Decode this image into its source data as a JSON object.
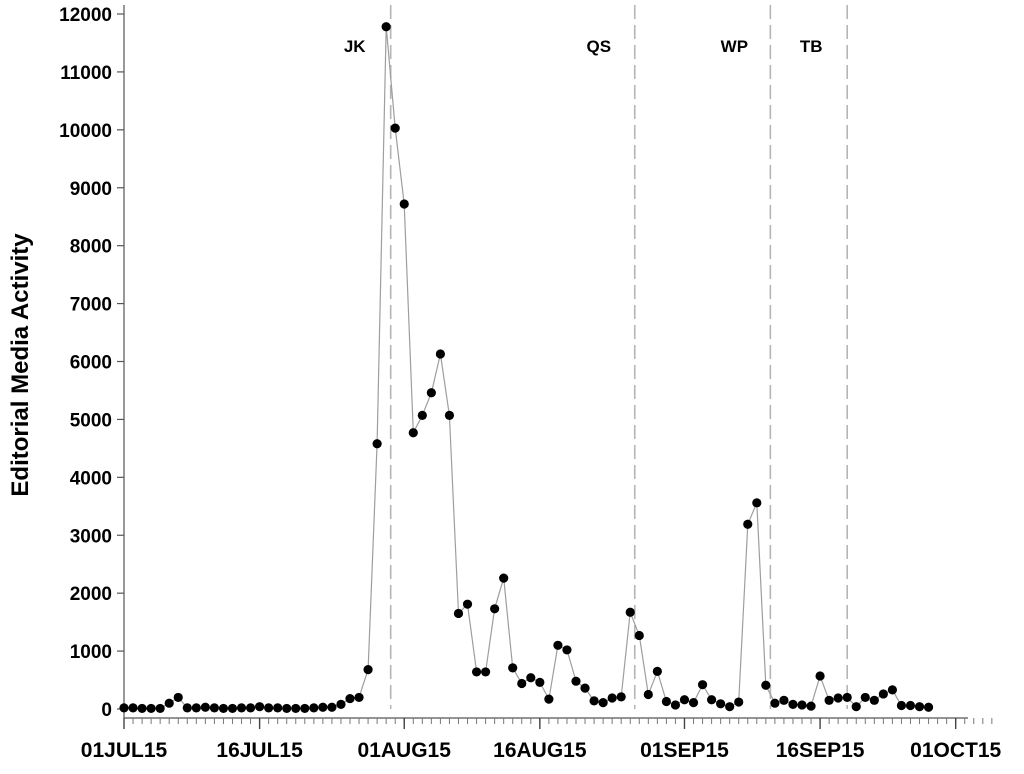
{
  "chart_data": {
    "type": "line",
    "ylabel": "Editorial Media Activity",
    "xlabel": "",
    "ylim": [
      0,
      12000
    ],
    "y_ticks": [
      0,
      1000,
      2000,
      3000,
      4000,
      5000,
      6000,
      7000,
      8000,
      9000,
      10000,
      11000,
      12000
    ],
    "x_ticks": [
      {
        "label": "01JUL15",
        "day": 0
      },
      {
        "label": "16JUL15",
        "day": 15
      },
      {
        "label": "01AUG15",
        "day": 31
      },
      {
        "label": "16AUG15",
        "day": 46
      },
      {
        "label": "01SEP15",
        "day": 62
      },
      {
        "label": "16SEP15",
        "day": 77
      },
      {
        "label": "01OCT15",
        "day": 92
      }
    ],
    "xlim_days": [
      0,
      96
    ],
    "marker": "filled-circle",
    "line_color": "#9e9e9e",
    "marker_color": "#000000",
    "reference_lines": [
      {
        "label": "JK",
        "day": 29.5
      },
      {
        "label": "QS",
        "day": 56.5
      },
      {
        "label": "WP",
        "day": 71.5
      },
      {
        "label": "TB",
        "day": 80
      }
    ],
    "series": [
      {
        "values": [
          {
            "date": "01JUL15",
            "y": 20
          },
          {
            "date": "02JUL15",
            "y": 20
          },
          {
            "date": "03JUL15",
            "y": 10
          },
          {
            "date": "04JUL15",
            "y": 10
          },
          {
            "date": "05JUL15",
            "y": 10
          },
          {
            "date": "06JUL15",
            "y": 100
          },
          {
            "date": "07JUL15",
            "y": 200
          },
          {
            "date": "08JUL15",
            "y": 20
          },
          {
            "date": "09JUL15",
            "y": 20
          },
          {
            "date": "10JUL15",
            "y": 30
          },
          {
            "date": "11JUL15",
            "y": 20
          },
          {
            "date": "12JUL15",
            "y": 10
          },
          {
            "date": "13JUL15",
            "y": 10
          },
          {
            "date": "14JUL15",
            "y": 20
          },
          {
            "date": "15JUL15",
            "y": 20
          },
          {
            "date": "16JUL15",
            "y": 40
          },
          {
            "date": "17JUL15",
            "y": 20
          },
          {
            "date": "18JUL15",
            "y": 20
          },
          {
            "date": "19JUL15",
            "y": 10
          },
          {
            "date": "20JUL15",
            "y": 10
          },
          {
            "date": "21JUL15",
            "y": 10
          },
          {
            "date": "22JUL15",
            "y": 20
          },
          {
            "date": "23JUL15",
            "y": 30
          },
          {
            "date": "24JUL15",
            "y": 30
          },
          {
            "date": "25JUL15",
            "y": 80
          },
          {
            "date": "26JUL15",
            "y": 180
          },
          {
            "date": "27JUL15",
            "y": 200
          },
          {
            "date": "28JUL15",
            "y": 680
          },
          {
            "date": "29JUL15",
            "y": 4580
          },
          {
            "date": "30JUL15",
            "y": 11780
          },
          {
            "date": "31JUL15",
            "y": 10030
          },
          {
            "date": "01AUG15",
            "y": 8720
          },
          {
            "date": "02AUG15",
            "y": 4770
          },
          {
            "date": "03AUG15",
            "y": 5070
          },
          {
            "date": "04AUG15",
            "y": 5460
          },
          {
            "date": "05AUG15",
            "y": 6130
          },
          {
            "date": "06AUG15",
            "y": 5070
          },
          {
            "date": "07AUG15",
            "y": 1650
          },
          {
            "date": "08AUG15",
            "y": 1810
          },
          {
            "date": "09AUG15",
            "y": 640
          },
          {
            "date": "10AUG15",
            "y": 640
          },
          {
            "date": "11AUG15",
            "y": 1730
          },
          {
            "date": "12AUG15",
            "y": 2260
          },
          {
            "date": "13AUG15",
            "y": 710
          },
          {
            "date": "14AUG15",
            "y": 440
          },
          {
            "date": "15AUG15",
            "y": 540
          },
          {
            "date": "16AUG15",
            "y": 460
          },
          {
            "date": "17AUG15",
            "y": 170
          },
          {
            "date": "18AUG15",
            "y": 1100
          },
          {
            "date": "19AUG15",
            "y": 1020
          },
          {
            "date": "20AUG15",
            "y": 480
          },
          {
            "date": "21AUG15",
            "y": 360
          },
          {
            "date": "22AUG15",
            "y": 140
          },
          {
            "date": "23AUG15",
            "y": 110
          },
          {
            "date": "24AUG15",
            "y": 190
          },
          {
            "date": "25AUG15",
            "y": 210
          },
          {
            "date": "26AUG15",
            "y": 1670
          },
          {
            "date": "27AUG15",
            "y": 1270
          },
          {
            "date": "28AUG15",
            "y": 250
          },
          {
            "date": "29AUG15",
            "y": 650
          },
          {
            "date": "30AUG15",
            "y": 130
          },
          {
            "date": "31AUG15",
            "y": 70
          },
          {
            "date": "01SEP15",
            "y": 160
          },
          {
            "date": "02SEP15",
            "y": 110
          },
          {
            "date": "03SEP15",
            "y": 420
          },
          {
            "date": "04SEP15",
            "y": 160
          },
          {
            "date": "05SEP15",
            "y": 90
          },
          {
            "date": "06SEP15",
            "y": 40
          },
          {
            "date": "07SEP15",
            "y": 120
          },
          {
            "date": "08SEP15",
            "y": 3190
          },
          {
            "date": "09SEP15",
            "y": 3560
          },
          {
            "date": "10SEP15",
            "y": 410
          },
          {
            "date": "11SEP15",
            "y": 100
          },
          {
            "date": "12SEP15",
            "y": 150
          },
          {
            "date": "13SEP15",
            "y": 80
          },
          {
            "date": "14SEP15",
            "y": 70
          },
          {
            "date": "15SEP15",
            "y": 50
          },
          {
            "date": "16SEP15",
            "y": 570
          },
          {
            "date": "17SEP15",
            "y": 150
          },
          {
            "date": "18SEP15",
            "y": 190
          },
          {
            "date": "19SEP15",
            "y": 200
          },
          {
            "date": "20SEP15",
            "y": 40
          },
          {
            "date": "21SEP15",
            "y": 200
          },
          {
            "date": "22SEP15",
            "y": 150
          },
          {
            "date": "23SEP15",
            "y": 260
          },
          {
            "date": "24SEP15",
            "y": 330
          },
          {
            "date": "25SEP15",
            "y": 60
          },
          {
            "date": "26SEP15",
            "y": 60
          },
          {
            "date": "27SEP15",
            "y": 40
          },
          {
            "date": "28SEP15",
            "y": 30
          }
        ]
      }
    ]
  }
}
